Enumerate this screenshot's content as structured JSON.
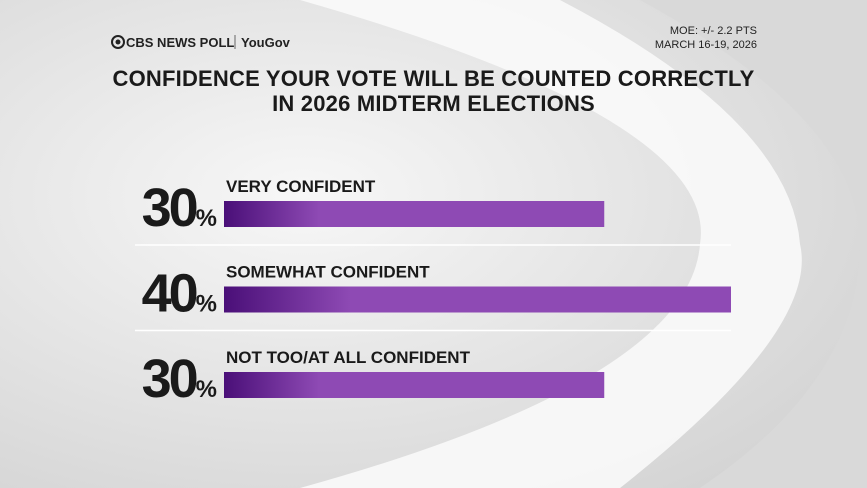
{
  "header": {
    "brand": "CBS NEWS POLL",
    "partner": "YouGov",
    "moe": "MOE: +/- 2.2 PTS",
    "dates": "MARCH 16-19, 2026"
  },
  "chart_data": {
    "type": "bar",
    "orientation": "horizontal",
    "title": "CONFIDENCE YOUR VOTE WILL BE COUNTED CORRECTLY IN 2026 MIDTERM ELECTIONS",
    "categories": [
      "VERY CONFIDENT",
      "SOMEWHAT CONFIDENT",
      "NOT TOO/AT ALL CONFIDENT"
    ],
    "values": [
      30,
      40,
      30
    ],
    "value_labels": [
      "30%",
      "40%",
      "30%"
    ],
    "color": "#8e4ab4"
  }
}
